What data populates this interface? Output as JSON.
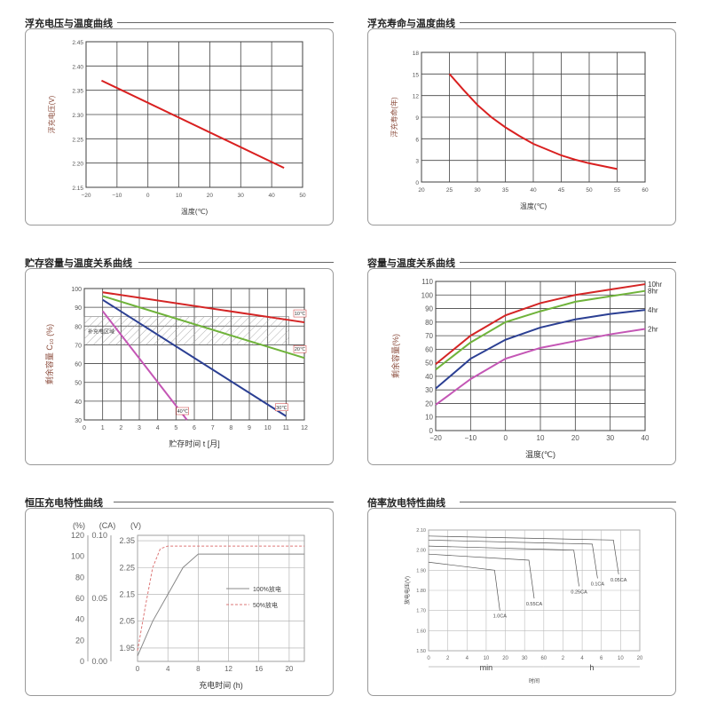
{
  "charts": [
    {
      "key": "p1",
      "title": "浮充电压与温度曲线",
      "chart_data": {
        "type": "line",
        "xlabel": "温度(℃)",
        "ylabel": "浮充电压(V)",
        "xticks": [
          "−20",
          "−10",
          "0",
          "10",
          "20",
          "30",
          "40",
          "50"
        ],
        "yticks": [
          "2.15",
          "2.20",
          "2.25",
          "2.30",
          "2.35",
          "2.40",
          "2.45"
        ],
        "xlim": [
          -20,
          50
        ],
        "ylim": [
          2.15,
          2.45
        ],
        "grid": true,
        "series": [
          {
            "color": "#d92020",
            "x": [
              -15,
              44
            ],
            "y": [
              2.37,
              2.19
            ]
          }
        ]
      }
    },
    {
      "key": "p2",
      "title": "浮充寿命与温度曲线",
      "chart_data": {
        "type": "line",
        "xlabel": "温度(℃)",
        "ylabel": "浮充寿命(年)",
        "xticks": [
          "20",
          "25",
          "30",
          "35",
          "40",
          "45",
          "50",
          "55",
          "60"
        ],
        "yticks": [
          "0",
          "3",
          "6",
          "9",
          "12",
          "15",
          "18"
        ],
        "xlim": [
          20,
          60
        ],
        "ylim": [
          0,
          18
        ],
        "grid": true,
        "series": [
          {
            "color": "#d92020",
            "x": [
              25,
              27.5,
              30,
              32.5,
              35,
              37.5,
              40,
              42.5,
              45,
              47.5,
              50,
              52.5,
              55
            ],
            "y": [
              15,
              12.8,
              10.7,
              9.0,
              7.6,
              6.4,
              5.3,
              4.5,
              3.7,
              3.1,
              2.6,
              2.2,
              1.8
            ]
          }
        ]
      }
    },
    {
      "key": "p3",
      "title": "贮存容量与温度关系曲线",
      "chart_data": {
        "type": "line",
        "xlabel": "贮存时间 t [月]",
        "ylabel": "剩余容量 C₁₀ (%)",
        "xticks": [
          "0",
          "1",
          "2",
          "3",
          "4",
          "5",
          "6",
          "7",
          "8",
          "9",
          "10",
          "11",
          "12"
        ],
        "yticks": [
          "30",
          "40",
          "50",
          "60",
          "70",
          "80",
          "90",
          "100"
        ],
        "xlim": [
          0,
          12
        ],
        "ylim": [
          30,
          100
        ],
        "grid": true,
        "band": {
          "y": [
            70,
            85
          ],
          "label": "补充电区域"
        },
        "series": [
          {
            "name": "10℃",
            "color": "#d42525",
            "x": [
              1,
              12
            ],
            "y": [
              98,
              82
            ]
          },
          {
            "name": "20℃",
            "color": "#6fb33a",
            "x": [
              1,
              12
            ],
            "y": [
              96,
              63
            ]
          },
          {
            "name": "30℃",
            "color": "#2b3f93",
            "x": [
              1,
              11
            ],
            "y": [
              94,
              32
            ]
          },
          {
            "name": "40℃",
            "color": "#c456b5",
            "x": [
              1,
              5.6
            ],
            "y": [
              88,
              30
            ]
          }
        ]
      }
    },
    {
      "key": "p4",
      "title": "容量与温度关系曲线",
      "chart_data": {
        "type": "line",
        "xlabel": "温度(℃)",
        "ylabel": "剩余容量(%)",
        "xticks": [
          "−20",
          "−10",
          "0",
          "10",
          "20",
          "30",
          "40"
        ],
        "yticks": [
          "0",
          "10",
          "20",
          "30",
          "40",
          "50",
          "60",
          "70",
          "80",
          "90",
          "100",
          "110"
        ],
        "xlim": [
          -20,
          40
        ],
        "ylim": [
          0,
          110
        ],
        "grid": true,
        "series": [
          {
            "name": "10hr",
            "color": "#d42525",
            "x": [
              -20,
              -10,
              0,
              10,
              20,
              30,
              40
            ],
            "y": [
              49,
              70,
              85,
              94,
              100,
              104,
              108
            ]
          },
          {
            "name": "8hr",
            "color": "#6fb33a",
            "x": [
              -20,
              -10,
              0,
              10,
              20,
              30,
              40
            ],
            "y": [
              45,
              65,
              80,
              88,
              95,
              99,
              103
            ]
          },
          {
            "name": "4hr",
            "color": "#2b3f93",
            "x": [
              -20,
              -10,
              0,
              10,
              20,
              30,
              40
            ],
            "y": [
              31,
              53,
              67,
              76,
              82,
              86,
              89
            ]
          },
          {
            "name": "2hr",
            "color": "#c456b5",
            "x": [
              -20,
              -10,
              0,
              10,
              20,
              30,
              40
            ],
            "y": [
              19,
              38,
              53,
              61,
              66,
              71,
              75
            ]
          }
        ]
      }
    },
    {
      "key": "p5",
      "title": "恒压充电特性曲线",
      "chart_data": {
        "type": "line",
        "xlabel": "充电时间 (h)",
        "axis_titles": [
          "(%)",
          "(CA)",
          "(V)"
        ],
        "pct_ticks": [
          "0",
          "20",
          "40",
          "60",
          "80",
          "100",
          "120"
        ],
        "ca_ticks": [
          "0.00",
          "0.05",
          "0.10"
        ],
        "v_ticks": [
          "1.95",
          "2.05",
          "2.15",
          "2.25",
          "2.35"
        ],
        "xticks": [
          "0",
          "4",
          "8",
          "12",
          "16",
          "20"
        ],
        "xlim": [
          0,
          22
        ],
        "vlim": [
          1.9,
          2.37
        ],
        "grid": true,
        "legend": [
          "100%放电",
          "50%放电"
        ],
        "series": [
          {
            "name": "100%放电",
            "dash": false,
            "x": [
              0,
              2,
              4,
              6,
              8,
              22
            ],
            "y": [
              1.92,
              2.05,
              2.15,
              2.25,
              2.3,
              2.3
            ]
          },
          {
            "name": "50%放电",
            "dash": true,
            "x": [
              0,
              1,
              2,
              3,
              4,
              22
            ],
            "y": [
              1.94,
              2.1,
              2.25,
              2.32,
              2.33,
              2.33
            ]
          }
        ]
      }
    },
    {
      "key": "p6",
      "title": "倍率放电特性曲线",
      "chart_data": {
        "type": "line",
        "xlabel": "时间",
        "ylabel": "放电电压(V)",
        "yticks": [
          "1.50",
          "1.60",
          "1.70",
          "1.80",
          "1.90",
          "2.00",
          "2.10"
        ],
        "xticks": [
          "0",
          "2",
          "4",
          "10",
          "20",
          "30",
          "60",
          "2",
          "4",
          "6",
          "10",
          "20"
        ],
        "units": [
          "min",
          "h"
        ],
        "ylim": [
          1.5,
          2.1
        ],
        "grid": true,
        "series": [
          {
            "name": "1.0CA",
            "x": [
              0,
              25,
              27
            ],
            "y": [
              1.94,
              1.9,
              1.7
            ]
          },
          {
            "name": "0.55CA",
            "x": [
              0,
              38,
              40
            ],
            "y": [
              1.98,
              1.95,
              1.76
            ]
          },
          {
            "name": "0.25CA",
            "x": [
              0,
              55,
              57
            ],
            "y": [
              2.02,
              2.0,
              1.82
            ]
          },
          {
            "name": "0.1CA",
            "x": [
              0,
              62,
              64
            ],
            "y": [
              2.05,
              2.03,
              1.86
            ]
          },
          {
            "name": "0.05CA",
            "x": [
              0,
              70,
              72
            ],
            "y": [
              2.07,
              2.05,
              1.88
            ]
          }
        ]
      }
    }
  ]
}
